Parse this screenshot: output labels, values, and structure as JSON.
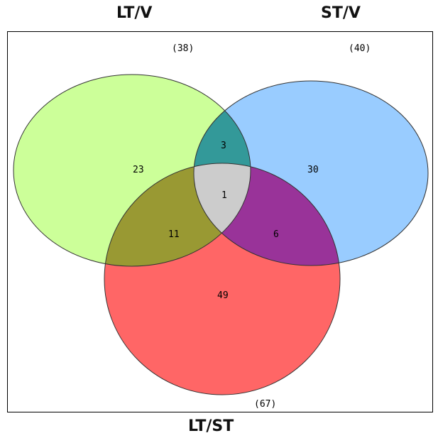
{
  "colors": {
    "set_a": "#ccff99",
    "set_b": "#99ccff",
    "set_c": "#ff6666",
    "ab": "#339999",
    "ac": "#999933",
    "bc": "#993399",
    "abc": "#cccccc",
    "outline": "#333333"
  },
  "sets": {
    "a": {
      "title": "LT/V",
      "total": "(38)"
    },
    "b": {
      "title": "ST/V",
      "total": "(40)"
    },
    "c": {
      "title": "LT/ST",
      "total": "(67)"
    }
  },
  "regions": {
    "a_only": "23",
    "b_only": "30",
    "c_only": "49",
    "ab_only": "3",
    "ac_only": "11",
    "bc_only": "6",
    "abc": "1"
  }
}
